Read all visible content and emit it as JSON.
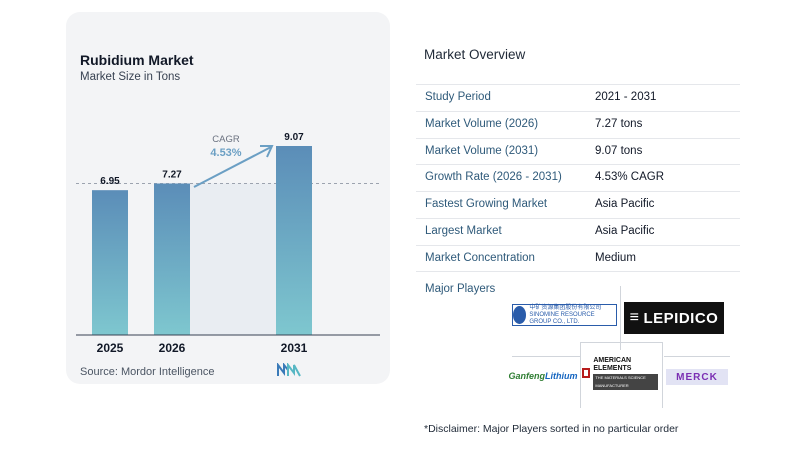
{
  "chart": {
    "title": "Rubidium Market",
    "subtitle": "Market Size in Tons",
    "source": "Source:  Mordor Intelligence",
    "cagr_label": "CAGR",
    "cagr_value": "4.53%"
  },
  "chart_data": {
    "type": "bar",
    "categories": [
      "2025",
      "2026",
      "2031"
    ],
    "values": [
      6.95,
      7.27,
      9.07
    ],
    "value_labels": [
      "6.95",
      "7.27",
      "9.07"
    ],
    "title": "Rubidium Market",
    "subtitle": "Market Size in Tons",
    "xlabel": "",
    "ylabel": "",
    "ylim": [
      0,
      9.07
    ],
    "grid": false,
    "annotations": [
      "CAGR",
      "4.53%"
    ],
    "colors": {
      "bar_top": "#5b8db8",
      "bar_bottom": "#7ec7cf",
      "arrow": "#6b9fc4",
      "baseline": "#9ca3af"
    }
  },
  "overview": {
    "title": "Market Overview",
    "rows": [
      {
        "label": "Study Period",
        "value": "2021 - 2031"
      },
      {
        "label": "Market Volume (2026)",
        "value": "7.27 tons"
      },
      {
        "label": "Market Volume (2031)",
        "value": "9.07 tons"
      },
      {
        "label": "Growth Rate (2026 - 2031)",
        "value": "4.53% CAGR"
      },
      {
        "label": "Fastest Growing Market",
        "value": "Asia Pacific"
      },
      {
        "label": "Largest Market",
        "value": "Asia Pacific"
      },
      {
        "label": "Market Concentration",
        "value": "Medium"
      }
    ]
  },
  "players": {
    "title": "Major Players",
    "logos": {
      "chinalco": {
        "line1": "中矿资源集团股份有限公司",
        "line2": "SINOMINE RESOURCE GROUP CO., LTD."
      },
      "lepidico": "LEPIDICO",
      "ganfeng": {
        "part1": "Ganfeng",
        "part2": "Lithium"
      },
      "american_elements": {
        "line1": "AMERICAN",
        "line2": "ELEMENTS",
        "tagline": "THE MATERIALS SCIENCE MANUFACTURER"
      },
      "merck": "MERCK"
    }
  },
  "disclaimer": "*Disclaimer: Major Players sorted in no particular order"
}
